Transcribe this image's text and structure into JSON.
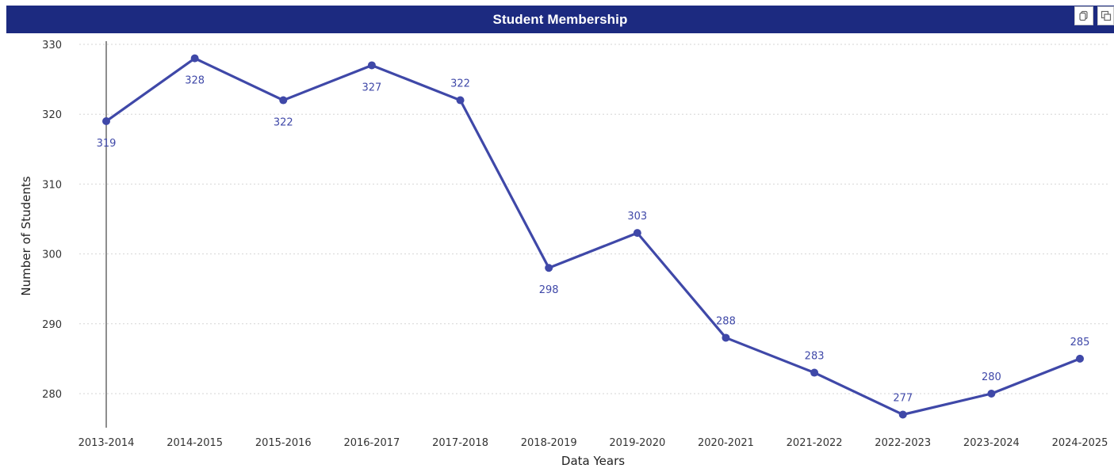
{
  "header": {
    "title": "Student Membership",
    "copy_icon": "copy-icon",
    "focus_icon": "focus-mode-icon"
  },
  "colors": {
    "title_bar": "#1c2a80",
    "series": "#3f48a8",
    "grid": "#d6d6d6",
    "axis": "#444444"
  },
  "chart_data": {
    "type": "line",
    "title": "Student Membership",
    "xlabel": "Data Years",
    "ylabel": "Number of Students",
    "categories": [
      "2013-2014",
      "2014-2015",
      "2015-2016",
      "2016-2017",
      "2017-2018",
      "2018-2019",
      "2019-2020",
      "2020-2021",
      "2021-2022",
      "2022-2023",
      "2023-2024",
      "2024-2025"
    ],
    "values": [
      319,
      328,
      322,
      327,
      322,
      298,
      303,
      288,
      283,
      277,
      280,
      285
    ],
    "data_labels": [
      "319",
      "328",
      "322",
      "327",
      "322",
      "298",
      "303",
      "288",
      "283",
      "277",
      "280",
      "285"
    ],
    "label_position": [
      "below",
      "below",
      "below",
      "below",
      "above",
      "below",
      "above",
      "above",
      "above",
      "above",
      "above",
      "above"
    ],
    "y_ticks": [
      280,
      290,
      300,
      310,
      320,
      330
    ],
    "y_tick_labels": [
      "280",
      "290",
      "300",
      "310",
      "320",
      "330"
    ],
    "ylim": [
      275,
      330
    ],
    "grid": "horizontal dotted",
    "legend": "none",
    "markers": true
  }
}
